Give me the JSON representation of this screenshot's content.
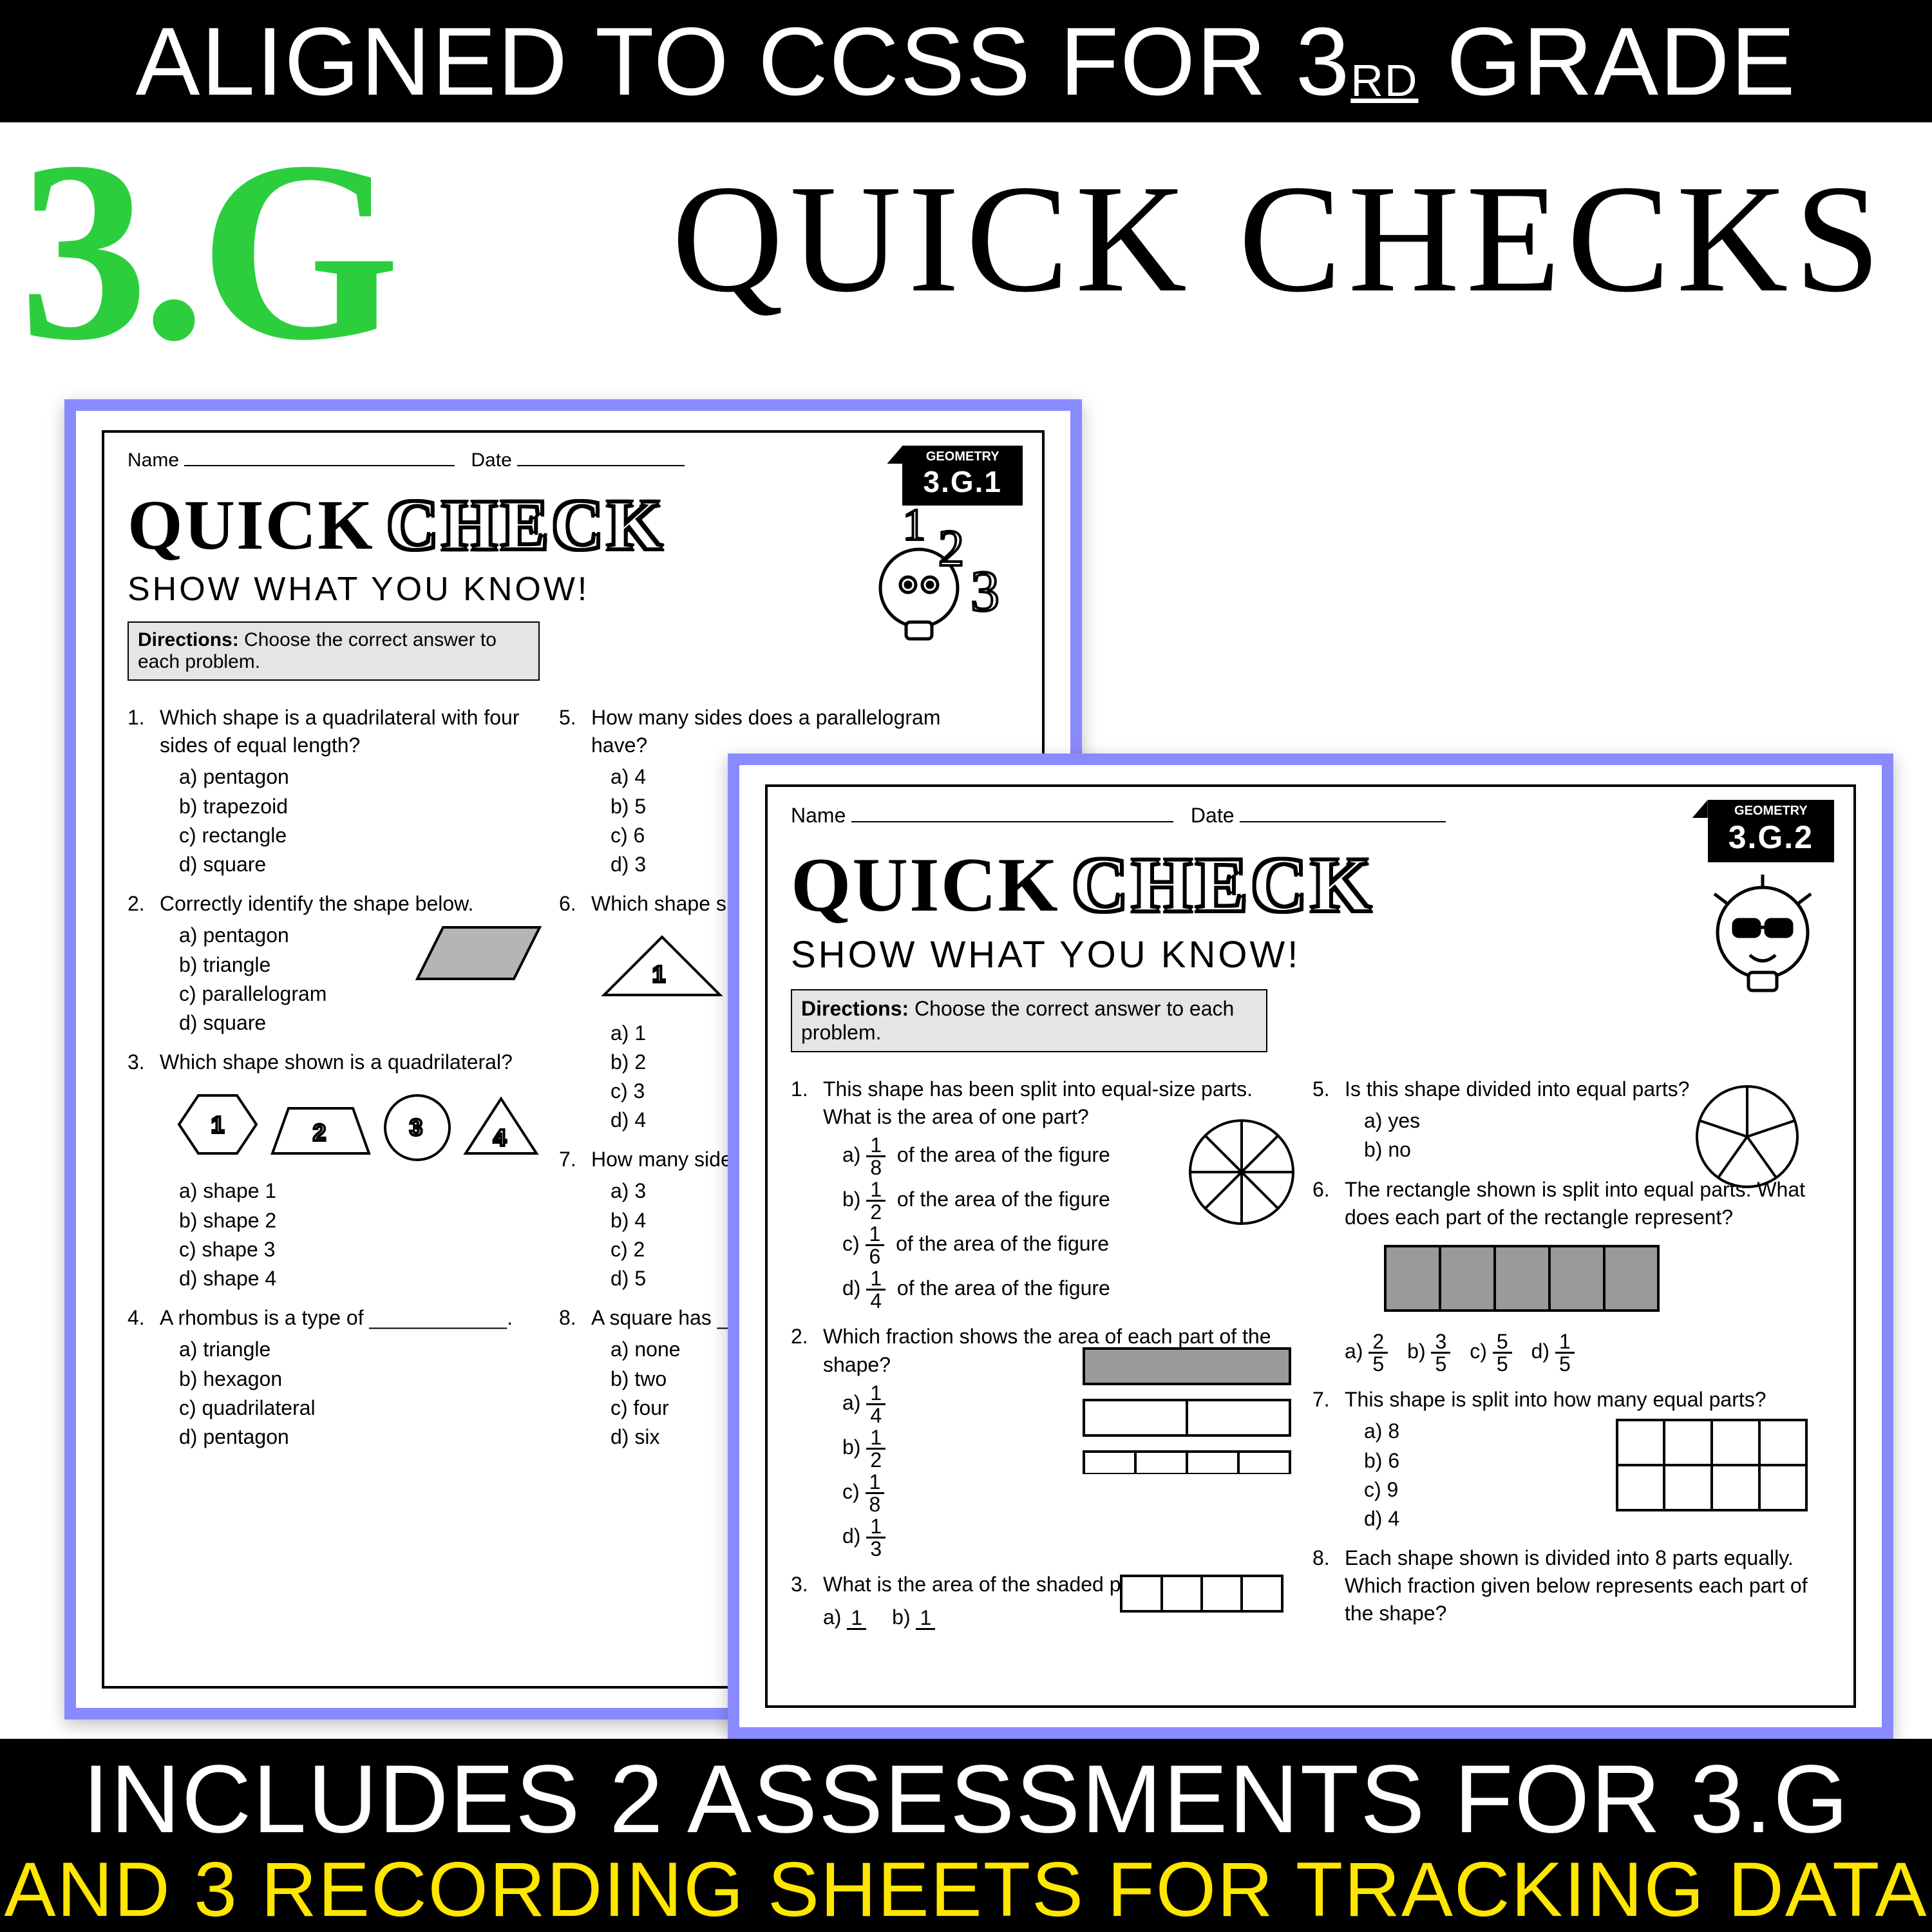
{
  "colors": {
    "accent_green": "#2dce3e",
    "accent_purple": "#8a8aff",
    "accent_yellow": "#ffe600"
  },
  "top_banner": {
    "pre": "ALIGNED TO CCSS FOR 3",
    "sup": "RD",
    "post": " GRADE"
  },
  "big_label": "3.G",
  "quick_checks": "QUICK CHECKS",
  "bottom": {
    "line1": "INCLUDES 2 ASSESSMENTS FOR 3.G",
    "line2": "AND 3 RECORDING SHEETS FOR TRACKING DATA"
  },
  "ws1": {
    "tag_small": "GEOMETRY",
    "tag_big": "3.G.1",
    "name_label": "Name",
    "date_label": "Date",
    "title_quick": "QUICK",
    "title_check": "CHECK",
    "subtitle": "SHOW WHAT YOU KNOW!",
    "directions_label": "Directions:",
    "directions_text": "Choose the correct answer to each problem.",
    "left": [
      {
        "n": "1.",
        "q": "Which shape is a quadrilateral with four sides of equal length?",
        "opts": [
          "a)  pentagon",
          "b)  trapezoid",
          "c)  rectangle",
          "d)  square"
        ]
      },
      {
        "n": "2.",
        "q": "Correctly identify the shape below.",
        "opts": [
          "a)  pentagon",
          "b)  triangle",
          "c)  parallelogram",
          "d)  square"
        ],
        "parallelogram": true
      },
      {
        "n": "3.",
        "q": "Which shape shown is a quadrilateral?",
        "opts": [
          "a)  shape 1",
          "b)  shape 2",
          "c)  shape 3",
          "d)  shape 4"
        ],
        "shaperow": true
      },
      {
        "n": "4.",
        "q": "A rhombus is a type of ____________.",
        "opts": [
          "a)  triangle",
          "b)  hexagon",
          "c)  quadrilateral",
          "d)  pentagon"
        ]
      }
    ],
    "right": [
      {
        "n": "5.",
        "q": "How many sides does a parallelogram have?",
        "opts": [
          "a)  4",
          "b)  5",
          "c)  6",
          "d)  3"
        ]
      },
      {
        "n": "6.",
        "q": "Which shape shown is a parallelogram?",
        "opts": [
          "a) 1",
          "b) 2",
          "c) 3",
          "d) 4"
        ],
        "trirow": true
      },
      {
        "n": "7.",
        "q": "How many sides does a pentagon have?",
        "opts": [
          "a)  3",
          "b)  4",
          "c)  2",
          "d)  5"
        ]
      },
      {
        "n": "8.",
        "q": "A square has ___ right angles.",
        "opts": [
          "a) none",
          "b) two",
          "c) four",
          "d) six"
        ]
      }
    ]
  },
  "ws2": {
    "tag_small": "GEOMETRY",
    "tag_big": "3.G.2",
    "name_label": "Name",
    "date_label": "Date",
    "title_quick": "QUICK",
    "title_check": "CHECK",
    "subtitle": "SHOW WHAT YOU KNOW!",
    "directions_label": "Directions:",
    "directions_text": "Choose the correct answer to each problem.",
    "left": [
      {
        "n": "1.",
        "q": "This shape has been split into equal-size parts. What is the area of one part?",
        "frac_opts": [
          [
            "a)",
            "1",
            "8",
            " of the area of the figure"
          ],
          [
            "b)",
            "1",
            "2",
            " of the area of the figure"
          ],
          [
            "c)",
            "1",
            "6",
            " of the area of the figure"
          ],
          [
            "d)",
            "1",
            "4",
            " of the area of the figure"
          ]
        ],
        "pie8": true
      },
      {
        "n": "2.",
        "q": "Which fraction shows the area of each part of the shape?",
        "frac_opts": [
          [
            "a)",
            "1",
            "4",
            ""
          ],
          [
            "b)",
            "1",
            "2",
            ""
          ],
          [
            "c)",
            "1",
            "8",
            ""
          ],
          [
            "d)",
            "1",
            "3",
            ""
          ]
        ],
        "bars": true
      },
      {
        "n": "3.",
        "q": "What is the area of the shaded part?",
        "frac_row": [
          [
            "a)",
            "1",
            " "
          ],
          [
            "b)",
            "1",
            " "
          ]
        ],
        "bars_small": true
      }
    ],
    "right": [
      {
        "n": "5.",
        "q": "Is this shape divided into equal parts?",
        "opts": [
          "a)  yes",
          "b)  no"
        ],
        "pent": true
      },
      {
        "n": "6.",
        "q": "The rectangle shown is split into equal parts. What does each part of the rectangle represent?",
        "frac_row5": [
          [
            "a)",
            "2",
            "5"
          ],
          [
            "b)",
            "3",
            "5"
          ],
          [
            "c)",
            "5",
            "5"
          ],
          [
            "d)",
            "1",
            "5"
          ]
        ],
        "rect5": true
      },
      {
        "n": "7.",
        "q": "This shape is split into how many equal parts?",
        "opts": [
          "a)  8",
          "b)  6",
          "c)  9",
          "d)  4"
        ],
        "grid8": true
      },
      {
        "n": "8.",
        "q": "Each shape shown is divided into 8 parts equally. Which fraction given below represents each part of the shape?"
      }
    ]
  }
}
